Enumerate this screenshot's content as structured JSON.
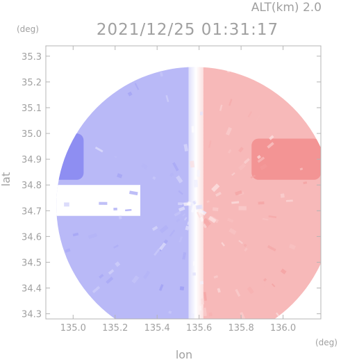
{
  "header": {
    "altitude": "ALT(km) 2.0",
    "timestamp": "2021/12/25 01:31:17"
  },
  "chart_data": {
    "type": "heatmap",
    "title": "2021/12/25 01:31:17",
    "xlabel": "lon",
    "ylabel": "lat",
    "x_unit": "(deg)",
    "y_unit": "(deg)",
    "xlim": [
      134.87,
      136.18
    ],
    "ylim": [
      34.28,
      35.34
    ],
    "x_ticks": [
      "135.0",
      "135.2",
      "135.4",
      "135.6",
      "135.8",
      "136.0"
    ],
    "y_ticks": [
      "34.3",
      "34.4",
      "34.5",
      "34.6",
      "34.7",
      "34.8",
      "34.9",
      "35.0",
      "35.1",
      "35.2",
      "35.3"
    ],
    "x_tick_values": [
      135.0,
      135.2,
      135.4,
      135.6,
      135.8,
      136.0
    ],
    "y_tick_values": [
      34.3,
      34.4,
      34.5,
      34.6,
      34.7,
      34.8,
      34.9,
      35.0,
      35.1,
      35.2,
      35.3
    ],
    "grid": false,
    "colors": {
      "approaching": "#8080f0",
      "receding": "#f08080",
      "zero": "#ffffff"
    },
    "radar_center": [
      135.58,
      34.72
    ],
    "radar_range_deg": 0.66,
    "regions": [
      {
        "name": "west-negative",
        "lon_range": [
          134.87,
          135.55
        ],
        "value": -0.55
      },
      {
        "name": "east-positive",
        "lon_range": [
          135.62,
          136.18
        ],
        "value": 0.55
      },
      {
        "name": "northwest-strong-negative",
        "lon_range": [
          134.87,
          135.05
        ],
        "lat_range": [
          34.82,
          35.0
        ],
        "value": -0.95
      },
      {
        "name": "east-strong-positive",
        "lon_range": [
          135.85,
          136.18
        ],
        "lat_range": [
          34.82,
          34.98
        ],
        "value": 0.9
      }
    ]
  }
}
